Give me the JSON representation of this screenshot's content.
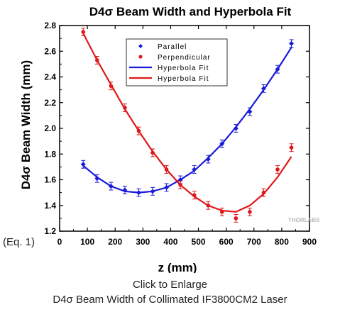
{
  "chart_data": {
    "type": "scatter",
    "title": "D4σ Beam Width and Hyperbola Fit",
    "xlabel": "z (mm)",
    "ylabel": "D4σ Beam Width (mm)",
    "xlim": [
      0,
      900
    ],
    "ylim": [
      1.2,
      2.8
    ],
    "xticks": [
      "0",
      "100",
      "200",
      "300",
      "400",
      "500",
      "600",
      "700",
      "800",
      "900"
    ],
    "yticks": [
      "1.2",
      "1.4",
      "1.6",
      "1.8",
      "2.0",
      "2.2",
      "2.4",
      "2.6",
      "2.8"
    ],
    "grid": false,
    "legend_position": "top-center",
    "series": [
      {
        "name": "Parallel",
        "color": "#1a1adc",
        "marker": "diamond",
        "x": [
          85,
          135,
          185,
          235,
          285,
          335,
          385,
          435,
          485,
          535,
          585,
          635,
          685,
          735,
          785,
          835
        ],
        "y": [
          1.72,
          1.61,
          1.55,
          1.52,
          1.5,
          1.51,
          1.54,
          1.6,
          1.68,
          1.76,
          1.88,
          2.0,
          2.13,
          2.31,
          2.46,
          2.66
        ],
        "error": 0.03
      },
      {
        "name": "Perpendicular",
        "color": "#e01818",
        "marker": "circle",
        "x": [
          85,
          135,
          185,
          235,
          285,
          335,
          385,
          435,
          485,
          535,
          585,
          635,
          685,
          735,
          785,
          835
        ],
        "y": [
          2.75,
          2.53,
          2.33,
          2.16,
          1.98,
          1.81,
          1.68,
          1.56,
          1.48,
          1.4,
          1.35,
          1.3,
          1.35,
          1.5,
          1.68,
          1.85
        ],
        "error": 0.03
      },
      {
        "name": "Hyperbola Fit",
        "color": "#1a1adc",
        "type": "line",
        "x": [
          85,
          135,
          185,
          235,
          285,
          335,
          385,
          435,
          485,
          535,
          585,
          635,
          685,
          735,
          785,
          835
        ],
        "y": [
          1.71,
          1.62,
          1.55,
          1.51,
          1.5,
          1.51,
          1.54,
          1.6,
          1.67,
          1.77,
          1.88,
          2.01,
          2.15,
          2.3,
          2.46,
          2.63
        ]
      },
      {
        "name": "Hyperbola Fit",
        "color": "#e01818",
        "type": "line",
        "x": [
          85,
          135,
          185,
          235,
          285,
          335,
          385,
          435,
          485,
          535,
          585,
          635,
          685,
          735,
          785,
          835
        ],
        "y": [
          2.74,
          2.53,
          2.34,
          2.15,
          1.98,
          1.82,
          1.68,
          1.56,
          1.47,
          1.4,
          1.36,
          1.35,
          1.4,
          1.49,
          1.62,
          1.78
        ]
      }
    ],
    "watermark": "THORLABS"
  },
  "equation_label": "(Eq. 1)",
  "enlarge_link": "Click to Enlarge",
  "caption": "D4σ Beam Width of Collimated IF3800CM2 Laser"
}
